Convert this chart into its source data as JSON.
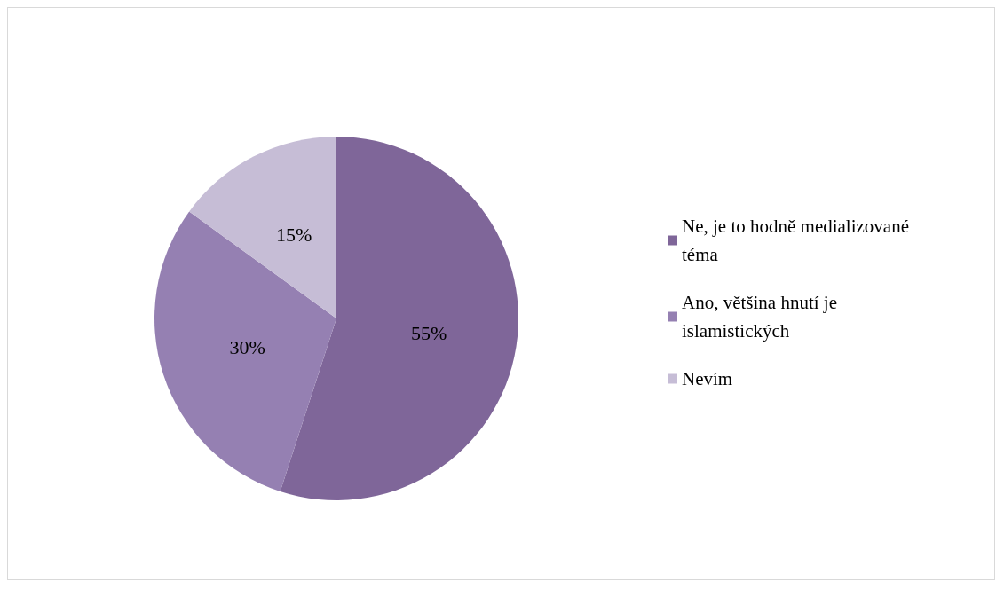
{
  "chart_data": {
    "type": "pie",
    "categories": [
      "Ne, je to hodně medializované téma",
      "Ano, většina hnutí je islamistických",
      "Nevím"
    ],
    "values": [
      55,
      30,
      15
    ],
    "colors": [
      "#7f6699",
      "#9580b2",
      "#c6bdd6"
    ],
    "value_labels": [
      "55%",
      "30%",
      "15%"
    ],
    "legend": "right"
  }
}
